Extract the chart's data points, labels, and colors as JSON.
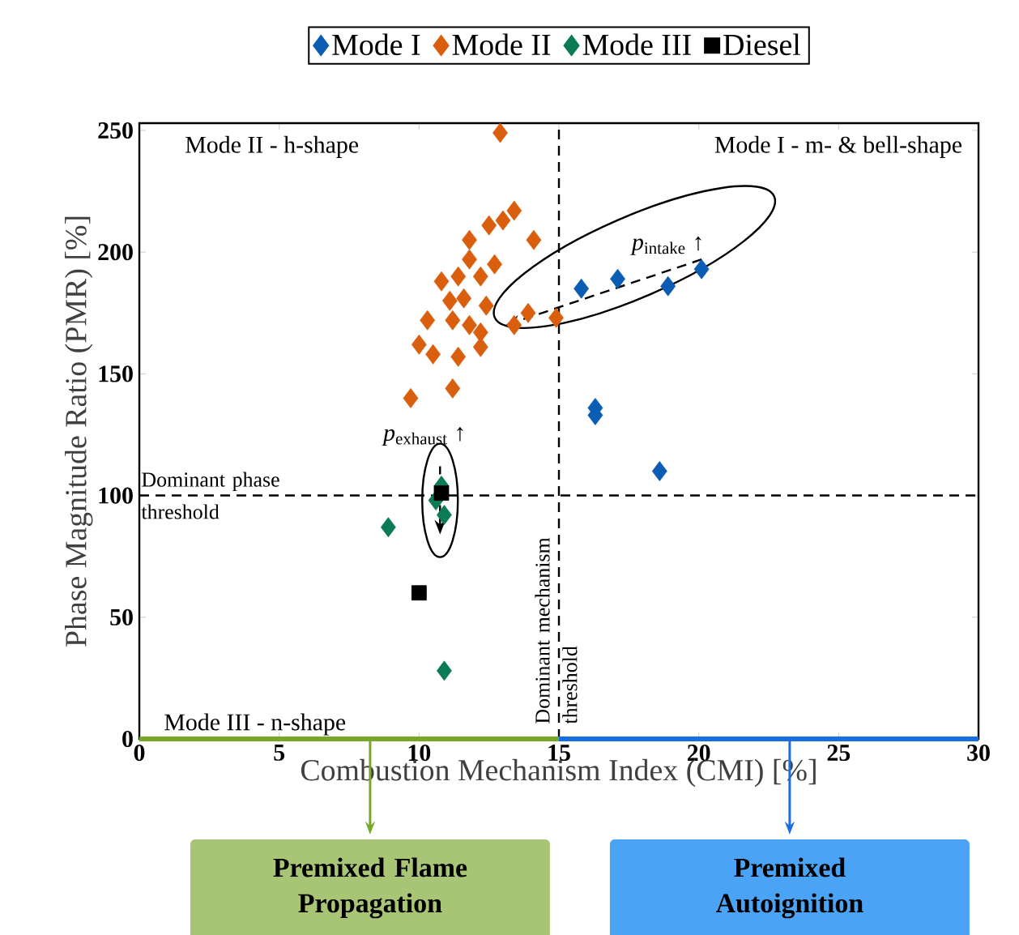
{
  "chart_data": {
    "type": "scatter",
    "xlabel": "Combustion Mechanism Index (CMI) [%]",
    "ylabel": "Phase Magnitude Ratio (PMR) [%]",
    "xlim": [
      0,
      30
    ],
    "ylim": [
      0,
      253
    ],
    "xticks": [
      0,
      5,
      10,
      15,
      20,
      25,
      30
    ],
    "yticks": [
      0,
      50,
      100,
      150,
      200,
      250
    ],
    "grid": false,
    "legend": "top",
    "marker": "diamond",
    "series": [
      {
        "name": "Mode I",
        "color": "#0b5db3",
        "x": [
          15.8,
          17.1,
          18.9,
          20.1,
          16.3,
          16.3,
          18.6
        ],
        "values": [
          185,
          189,
          186,
          193,
          136,
          133,
          110
        ]
      },
      {
        "name": "Mode II",
        "color": "#d95f0e",
        "x": [
          12.9,
          13.4,
          13.0,
          12.5,
          14.1,
          11.8,
          12.7,
          11.8,
          10.8,
          11.4,
          12.2,
          11.1,
          11.6,
          12.4,
          10.3,
          11.2,
          11.8,
          12.2,
          13.4,
          13.9,
          14.9,
          10.0,
          10.5,
          11.4,
          12.2,
          9.7,
          11.2
        ],
        "values": [
          249,
          217,
          213,
          211,
          205,
          205,
          195,
          197,
          188,
          190,
          190,
          180,
          181,
          178,
          172,
          172,
          170,
          167,
          170,
          175,
          173,
          162,
          158,
          157,
          161,
          140,
          144
        ]
      },
      {
        "name": "Mode III",
        "color": "#0b7a57",
        "x": [
          8.9,
          10.9,
          10.8,
          10.6,
          10.9
        ],
        "values": [
          87,
          28,
          104,
          98,
          92
        ]
      },
      {
        "name": "Diesel",
        "color": "#000000",
        "marker": "square",
        "x": [
          10.8,
          10.0
        ],
        "values": [
          101,
          60
        ]
      }
    ],
    "ref_lines": [
      {
        "axis": "y",
        "value": 100,
        "label": "Dominant phase threshold",
        "color": "#000000",
        "line_style": "dashed"
      },
      {
        "axis": "x",
        "value": 15,
        "label": "Dominant mechanism threshold",
        "color": "#000000",
        "line_style": "dashed"
      }
    ],
    "annotations": [
      "Mode II - h-shape",
      "Mode I - m- & bell-shape",
      "Mode III - n-shape",
      {
        "text": "*p*$_{intake}$ ↑",
        "x": 18.9,
        "y": 186
      },
      "*p*$_{exhaust}$ ↑",
      "Premixed Flame Propagation",
      "Premixed Autoignition"
    ]
  }
}
